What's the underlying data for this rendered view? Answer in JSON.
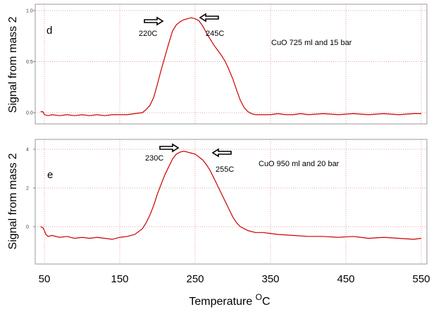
{
  "xlabel_main": "Temperature ",
  "xlabel_sup": "O",
  "xlabel_unit": "C",
  "x_tick_labels": [
    "50",
    "150",
    "250",
    "350",
    "450",
    "550"
  ],
  "x_ticks": [
    50,
    150,
    250,
    350,
    450,
    550
  ],
  "line_color": "#cc0000",
  "grid_color": "#e08080",
  "chart_data": [
    {
      "type": "line",
      "panel_label": "d",
      "ylabel": "Signal from mass 2",
      "annotation": "CuO 725 ml and 15 bar",
      "xlim": [
        40,
        550
      ],
      "ylim": [
        -0.05,
        1.0
      ],
      "y_ticks": [
        0.0,
        0.5,
        1.0
      ],
      "y_tick_labels": [
        "0.0",
        "0.5",
        "1.0"
      ],
      "markers": [
        {
          "label": "220C",
          "x": 220,
          "direction": "right"
        },
        {
          "label": "245C",
          "x": 245,
          "direction": "left"
        }
      ],
      "series": [
        {
          "x": [
            45,
            48,
            50,
            55,
            60,
            70,
            80,
            90,
            100,
            110,
            120,
            130,
            140,
            150,
            160,
            170,
            180,
            185,
            190,
            195,
            200,
            205,
            210,
            215,
            220,
            225,
            230,
            235,
            240,
            245,
            250,
            255,
            260,
            265,
            270,
            275,
            280,
            285,
            290,
            295,
            300,
            305,
            310,
            315,
            320,
            325,
            330,
            340,
            350,
            360,
            370,
            380,
            390,
            400,
            420,
            440,
            460,
            480,
            500,
            520,
            540,
            550
          ],
          "y": [
            0.01,
            0.01,
            -0.02,
            -0.03,
            -0.02,
            -0.03,
            -0.02,
            -0.03,
            -0.02,
            -0.03,
            -0.02,
            -0.03,
            -0.02,
            -0.02,
            -0.02,
            -0.01,
            0.0,
            0.03,
            0.07,
            0.15,
            0.28,
            0.42,
            0.55,
            0.68,
            0.8,
            0.86,
            0.89,
            0.91,
            0.92,
            0.93,
            0.92,
            0.9,
            0.85,
            0.78,
            0.72,
            0.66,
            0.61,
            0.56,
            0.5,
            0.42,
            0.33,
            0.22,
            0.12,
            0.05,
            0.01,
            -0.01,
            -0.02,
            -0.02,
            -0.02,
            -0.01,
            -0.02,
            -0.02,
            -0.01,
            -0.02,
            -0.01,
            -0.02,
            -0.01,
            -0.02,
            -0.01,
            -0.02,
            -0.01,
            -0.01
          ]
        }
      ]
    },
    {
      "type": "line",
      "panel_label": "e",
      "ylabel": "Signal from mass 2",
      "annotation": "CuO 950 ml and 20 bar",
      "xlim": [
        40,
        550
      ],
      "ylim": [
        -1.0,
        4.3
      ],
      "y_ticks": [
        0,
        2,
        4
      ],
      "y_tick_labels": [
        "0",
        "2",
        "4"
      ],
      "markers": [
        {
          "label": "230C",
          "x": 230,
          "direction": "right"
        },
        {
          "label": "255C",
          "x": 255,
          "direction": "left"
        }
      ],
      "series": [
        {
          "x": [
            45,
            48,
            50,
            52,
            55,
            60,
            70,
            80,
            90,
            100,
            110,
            120,
            130,
            140,
            150,
            160,
            170,
            180,
            185,
            190,
            195,
            200,
            205,
            210,
            215,
            220,
            225,
            230,
            235,
            240,
            245,
            250,
            255,
            260,
            265,
            270,
            275,
            280,
            285,
            290,
            295,
            300,
            305,
            310,
            315,
            320,
            330,
            340,
            350,
            360,
            380,
            400,
            420,
            440,
            460,
            480,
            500,
            520,
            540,
            550
          ],
          "y": [
            0.0,
            -0.05,
            -0.2,
            -0.4,
            -0.5,
            -0.45,
            -0.55,
            -0.5,
            -0.6,
            -0.55,
            -0.6,
            -0.55,
            -0.6,
            -0.65,
            -0.55,
            -0.5,
            -0.4,
            -0.1,
            0.2,
            0.6,
            1.1,
            1.7,
            2.2,
            2.7,
            3.1,
            3.5,
            3.75,
            3.85,
            3.9,
            3.85,
            3.8,
            3.75,
            3.6,
            3.45,
            3.2,
            2.9,
            2.5,
            2.1,
            1.7,
            1.3,
            0.9,
            0.5,
            0.2,
            0.0,
            -0.1,
            -0.2,
            -0.3,
            -0.3,
            -0.35,
            -0.4,
            -0.45,
            -0.5,
            -0.5,
            -0.55,
            -0.5,
            -0.6,
            -0.55,
            -0.6,
            -0.65,
            -0.6
          ]
        }
      ]
    }
  ]
}
